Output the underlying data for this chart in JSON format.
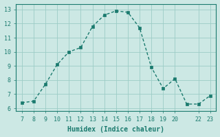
{
  "x": [
    7,
    8,
    9,
    10,
    11,
    12,
    13,
    14,
    15,
    16,
    17,
    18,
    19,
    20,
    21,
    22,
    23
  ],
  "y": [
    6.4,
    6.5,
    7.7,
    9.1,
    10.0,
    10.3,
    11.8,
    12.6,
    12.9,
    12.8,
    11.7,
    8.9,
    7.4,
    8.1,
    6.3,
    6.3,
    6.9
  ],
  "line_color": "#1a7a6e",
  "marker_color": "#1a7a6e",
  "bg_color": "#cce8e4",
  "grid_color": "#9cccc6",
  "xlabel": "Humidex (Indice chaleur)",
  "xlim": [
    6.5,
    23.5
  ],
  "ylim": [
    5.8,
    13.4
  ],
  "xticks": [
    7,
    8,
    9,
    10,
    11,
    12,
    13,
    14,
    15,
    16,
    17,
    18,
    19,
    20,
    22,
    23
  ],
  "yticks": [
    6,
    7,
    8,
    9,
    10,
    11,
    12,
    13
  ],
  "xlabel_fontsize": 7,
  "tick_fontsize": 6,
  "line_width": 1.0,
  "marker_size": 2.5
}
